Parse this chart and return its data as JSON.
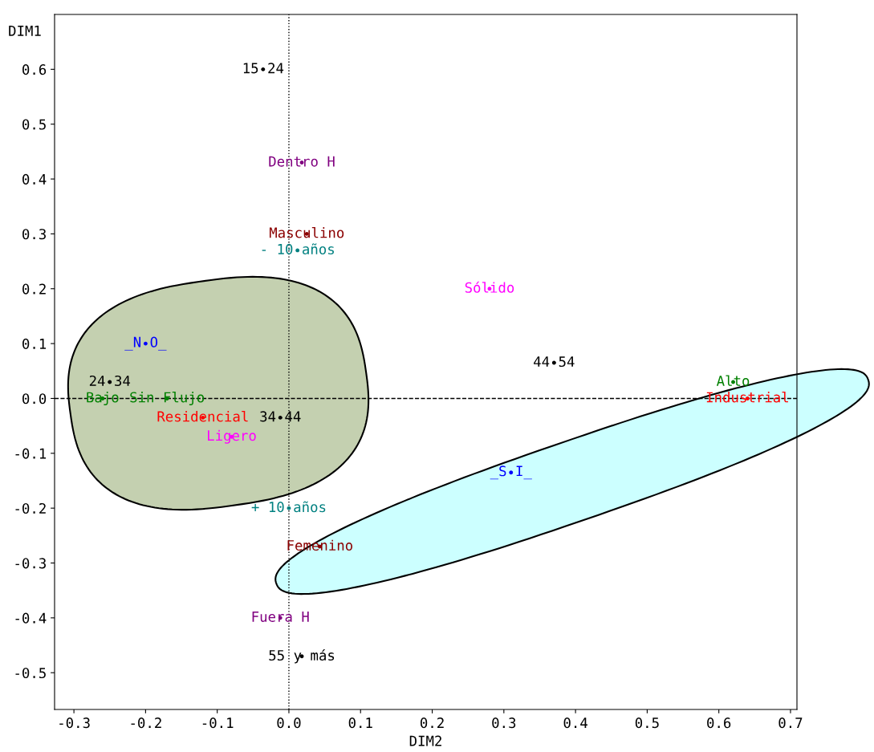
{
  "chart_data": {
    "type": "scatter",
    "xlabel": "DIM2",
    "ylabel": "DIM1",
    "xlim": [
      -0.327,
      0.709
    ],
    "ylim": [
      -0.567,
      0.7
    ],
    "xticks": [
      -0.3,
      -0.2,
      -0.1,
      {
        "value": 0,
        "label": "0.0"
      },
      0.1,
      0.2,
      0.3,
      0.4,
      0.5,
      0.6,
      0.7
    ],
    "yticks": [
      -0.5,
      -0.4,
      -0.3,
      -0.2,
      -0.1,
      {
        "value": 0,
        "label": "0.0"
      },
      0.1,
      0.2,
      0.3,
      0.4,
      0.5,
      0.6
    ],
    "grid": false,
    "legend": false,
    "marker": "circle",
    "ref_lines": [
      {
        "axis": "y",
        "value": 0,
        "line_style": "dashed",
        "color": "#000000"
      },
      {
        "axis": "x",
        "value": 0,
        "line_style": "dotted",
        "color": "#000000"
      }
    ],
    "series": [
      {
        "name": "15-24",
        "color": "#000000",
        "x": [
          -0.036
        ],
        "values": [
          0.6
        ]
      },
      {
        "name": "Dentro H",
        "color": "#800080",
        "x": [
          0.018
        ],
        "values": [
          0.43
        ]
      },
      {
        "name": "Masculino",
        "color": "#8b0000",
        "x": [
          0.025
        ],
        "values": [
          0.3
        ]
      },
      {
        "name": "- 10 años",
        "color": "#008080",
        "x": [
          0.012
        ],
        "values": [
          0.27
        ]
      },
      {
        "name": "Sólido",
        "color": "#ff00ff",
        "x": [
          0.28
        ],
        "values": [
          0.2
        ]
      },
      {
        "name": "_N O_",
        "color": "#0000ff",
        "x": [
          -0.2
        ],
        "values": [
          0.1
        ]
      },
      {
        "name": "44-54",
        "color": "#000000",
        "x": [
          0.37
        ],
        "values": [
          0.065
        ]
      },
      {
        "name": "24-34",
        "color": "#000000",
        "x": [
          -0.25
        ],
        "values": [
          0.03
        ]
      },
      {
        "name": "Alto",
        "color": "#008000",
        "x": [
          0.62
        ],
        "values": [
          0.03
        ]
      },
      {
        "name": "Bajo",
        "color": "#008000",
        "x": [
          -0.26
        ],
        "values": [
          0.0
        ]
      },
      {
        "name": "Sin Flujo",
        "color": "#008000",
        "x": [
          -0.17
        ],
        "values": [
          0.0
        ]
      },
      {
        "name": "Industrial",
        "color": "#ff0000",
        "x": [
          0.64
        ],
        "values": [
          0.0
        ]
      },
      {
        "name": "Residencial",
        "color": "#ff0000",
        "x": [
          -0.12
        ],
        "values": [
          -0.035
        ]
      },
      {
        "name": "34-44",
        "color": "#000000",
        "x": [
          -0.012
        ],
        "values": [
          -0.035
        ]
      },
      {
        "name": "Ligero",
        "color": "#ff00ff",
        "x": [
          -0.08
        ],
        "values": [
          -0.07
        ]
      },
      {
        "name": "_S I_",
        "color": "#0000ff",
        "x": [
          0.31
        ],
        "values": [
          -0.135
        ]
      },
      {
        "name": "+ 10 años",
        "color": "#008080",
        "x": [
          0.0
        ],
        "values": [
          -0.2
        ]
      },
      {
        "name": "Femenino",
        "color": "#8b0000",
        "x": [
          0.043
        ],
        "values": [
          -0.27
        ]
      },
      {
        "name": "Fuera H",
        "color": "#800080",
        "x": [
          -0.012
        ],
        "values": [
          -0.4
        ]
      },
      {
        "name": "55 y más",
        "color": "#000000",
        "x": [
          0.018
        ],
        "values": [
          -0.47
        ]
      }
    ]
  }
}
